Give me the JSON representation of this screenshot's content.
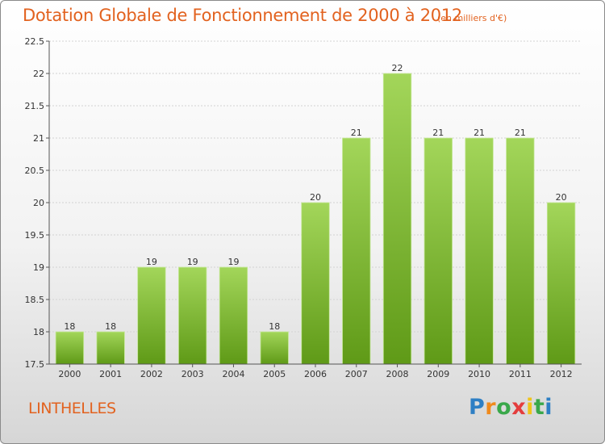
{
  "title": "Dotation Globale de Fonctionnement de 2000 à 2012",
  "subtitle": "(en milliers d'€)",
  "commune": "LINTHELLES",
  "logo": {
    "letters": [
      "P",
      "r",
      "o",
      "x",
      "i",
      "t",
      "i"
    ]
  },
  "chart_data": {
    "type": "bar",
    "categories": [
      "2000",
      "2001",
      "2002",
      "2003",
      "2004",
      "2005",
      "2006",
      "2007",
      "2008",
      "2009",
      "2010",
      "2011",
      "2012"
    ],
    "values": [
      18,
      18,
      19,
      19,
      19,
      18,
      20,
      21,
      22,
      21,
      21,
      21,
      20
    ],
    "data_labels": [
      "18",
      "18",
      "19",
      "19",
      "19",
      "18",
      "20",
      "21",
      "22",
      "21",
      "21",
      "21",
      "20"
    ],
    "y_ticks": [
      17.5,
      18,
      18.5,
      19,
      19.5,
      20,
      20.5,
      21,
      21.5,
      22,
      22.5
    ],
    "y_tick_labels": [
      "17.5",
      "18",
      "18.5",
      "19",
      "19.5",
      "20",
      "20.5",
      "21",
      "21.5",
      "22",
      "22.5"
    ],
    "ylim": [
      17.5,
      22.5
    ],
    "grid": true,
    "bar_color_top": "#a3d65a",
    "bar_color_bottom": "#5f9a17"
  }
}
